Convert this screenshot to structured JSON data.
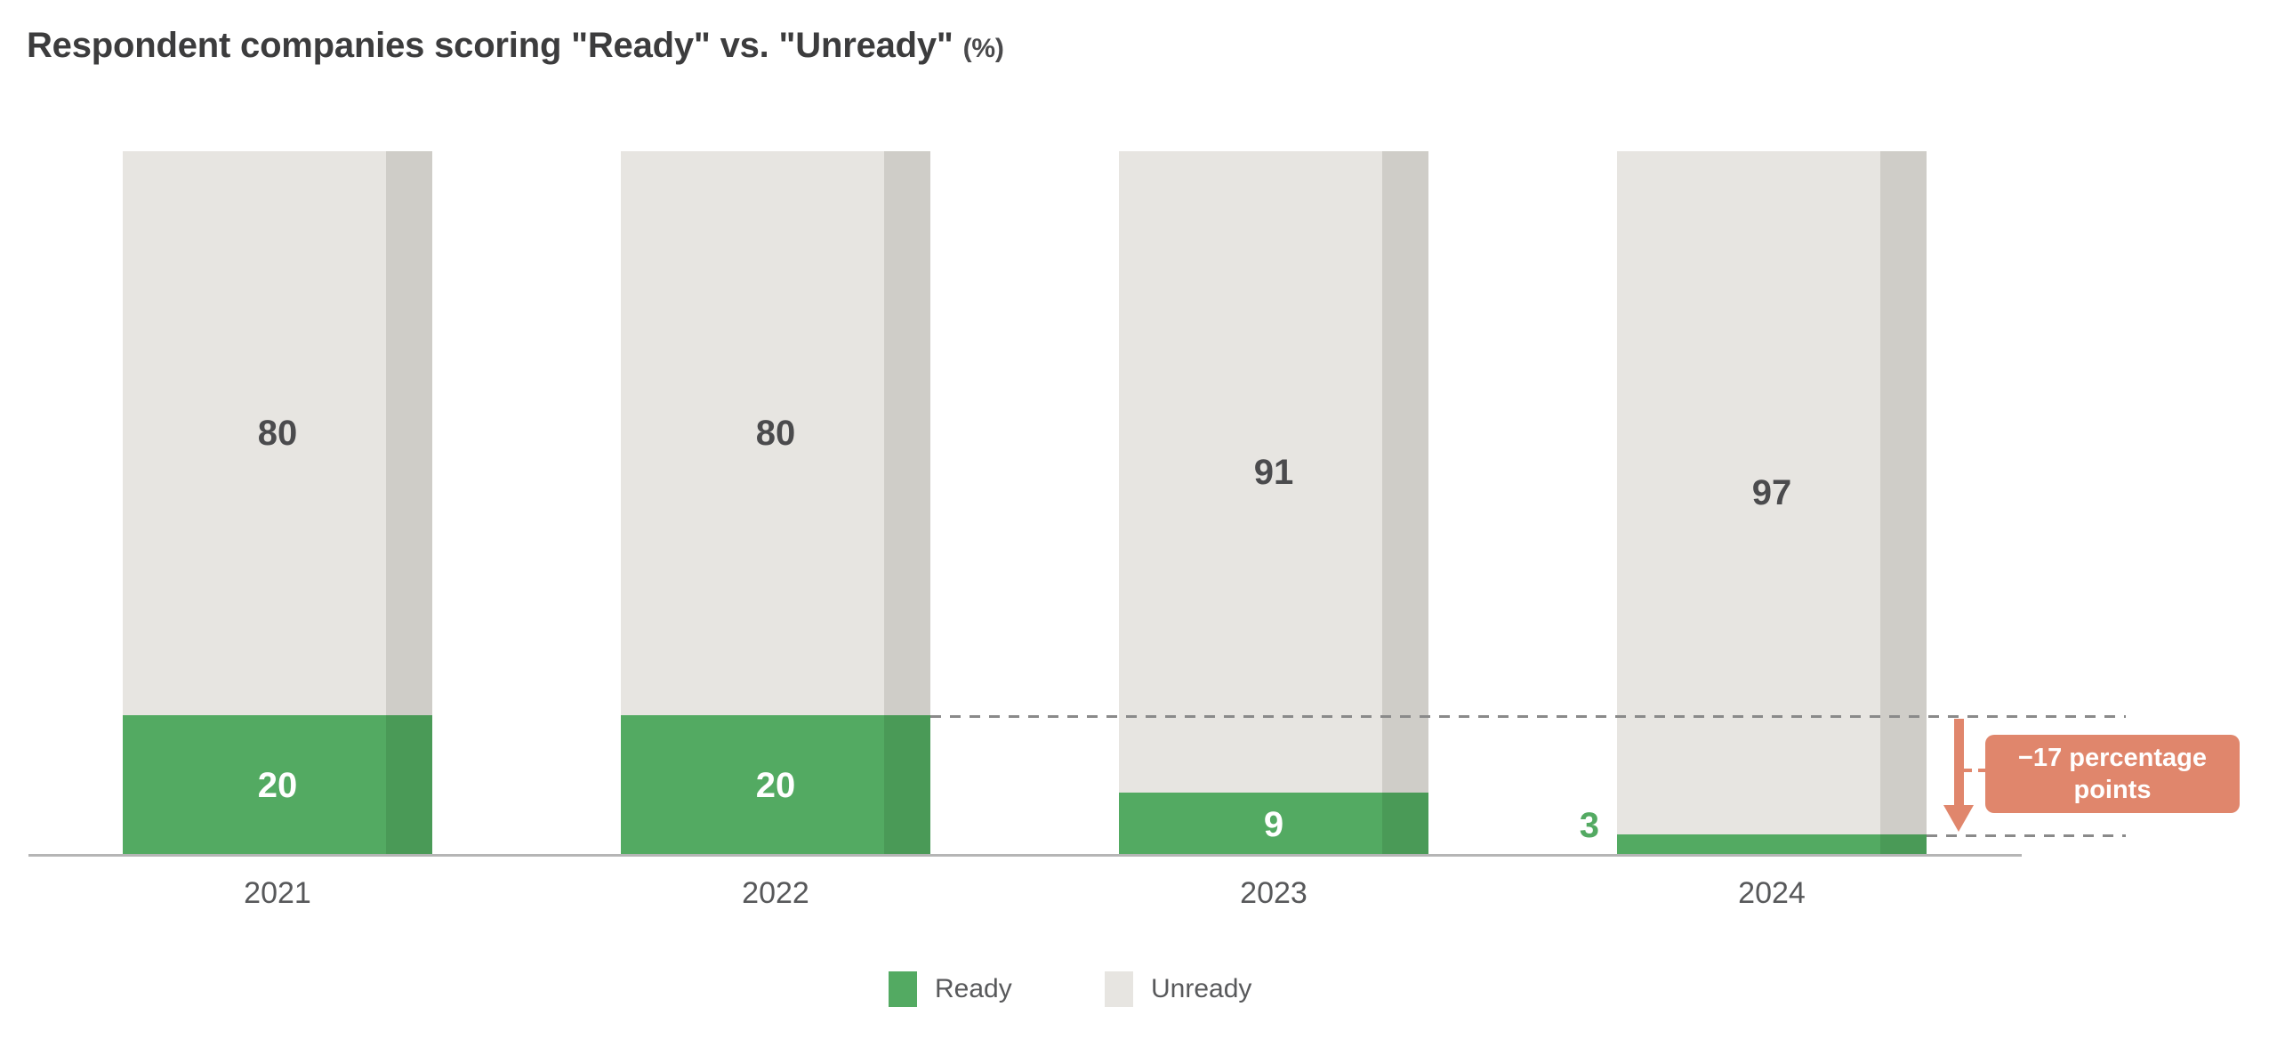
{
  "title": {
    "main": "Respondent companies scoring \"Ready\" vs. \"Unready\"",
    "suffix": "(%)"
  },
  "chart_data": {
    "type": "bar",
    "stacked": true,
    "unit": "%",
    "title": "Respondent companies scoring \"Ready\" vs. \"Unready\" (%)",
    "categories": [
      "2021",
      "2022",
      "2023",
      "2024"
    ],
    "series": [
      {
        "name": "Ready",
        "color": "#53aa62",
        "shade_color": "#4a9a57",
        "label_color": "#ffffff",
        "values": [
          20,
          20,
          9,
          3
        ]
      },
      {
        "name": "Unready",
        "color": "#e7e5e1",
        "shade_color": "#cfcdc8",
        "label_color": "#4b4b4d",
        "values": [
          80,
          80,
          91,
          97
        ]
      }
    ],
    "ylim": [
      0,
      100
    ],
    "grid": false,
    "axis_color": "#b5b5b5",
    "dashed_guide_color": "#8a8a8a",
    "legend_position": "bottom",
    "annotation": {
      "text_line1": "−17 percentage",
      "text_line2": "points",
      "full_text": "−17 percentage points",
      "from_category": "2022",
      "from_value": 20,
      "to_category": "2024",
      "to_value": 3,
      "color": "#e0866c"
    }
  },
  "legend": {
    "items": [
      {
        "label": "Ready",
        "color": "#53aa62"
      },
      {
        "label": "Unready",
        "color": "#e7e5e1"
      }
    ]
  }
}
